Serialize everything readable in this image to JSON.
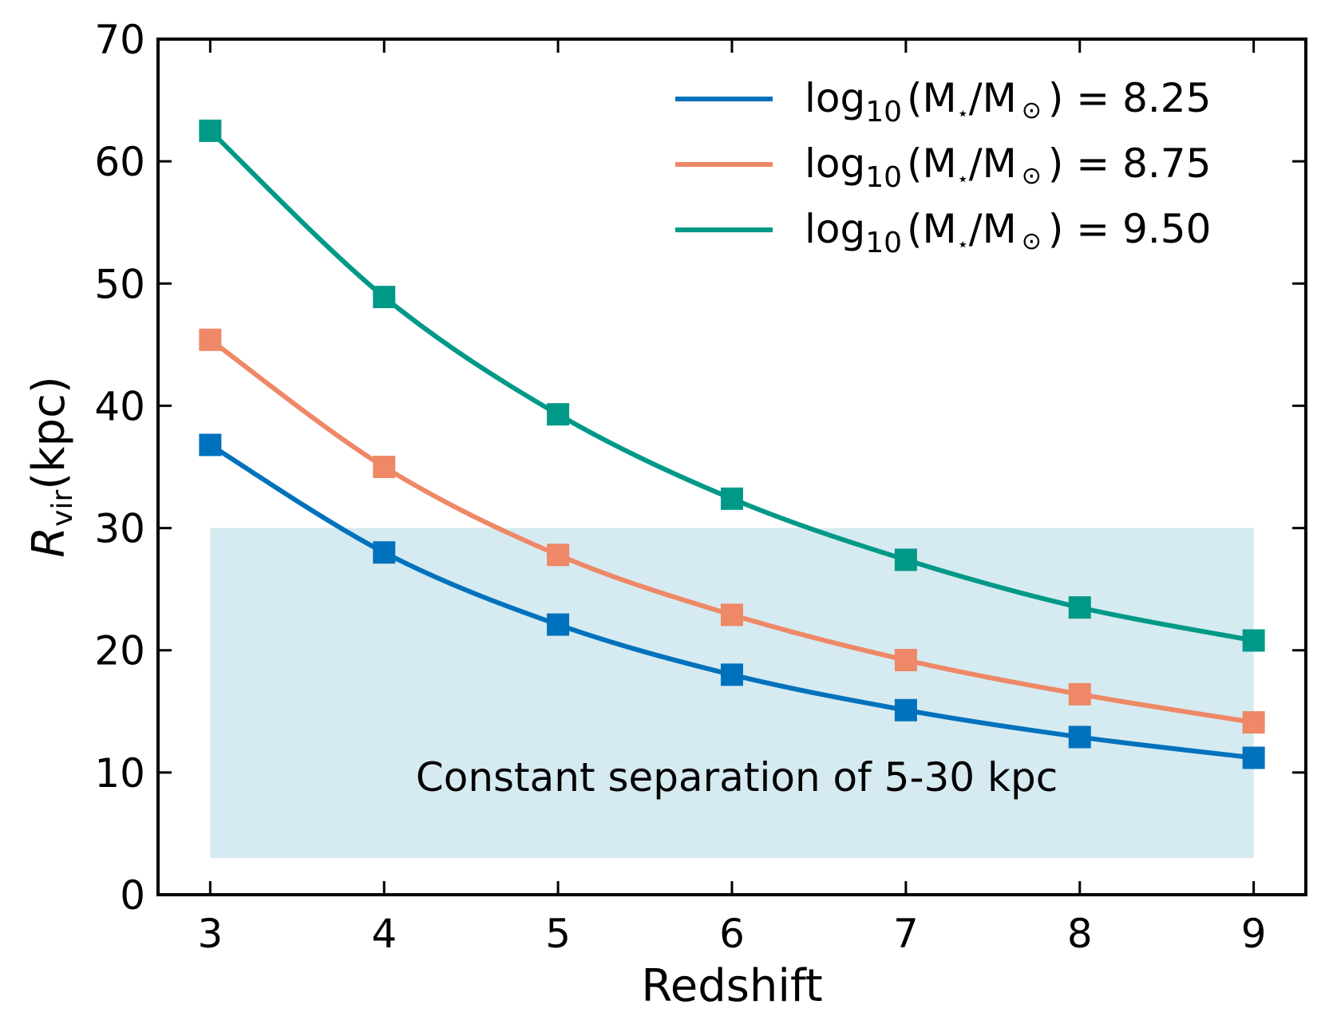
{
  "chart_data": {
    "type": "line",
    "title": "",
    "xlabel": "Redshift",
    "ylabel": {
      "main": "R",
      "sub": "vir",
      "unit": "(kpc)"
    },
    "xlim": [
      2.7,
      9.3
    ],
    "ylim": [
      0,
      70
    ],
    "xticks": [
      3,
      4,
      5,
      6,
      7,
      8,
      9
    ],
    "yticks": [
      0,
      10,
      20,
      30,
      40,
      50,
      60,
      70
    ],
    "grid": false,
    "legend_position": "top-right",
    "x": [
      3,
      4,
      5,
      6,
      7,
      8,
      9
    ],
    "series": [
      {
        "name": "8.25",
        "legend": {
          "prefix": "log",
          "base": "10",
          "expr": "(M",
          "star": "⋆",
          "slash": "/M",
          "sun": "⊙",
          "close": ")",
          "eq": " = 8.25"
        },
        "color": "#0072bd",
        "values": [
          36.8,
          28.0,
          22.1,
          18.0,
          15.1,
          12.9,
          11.2
        ]
      },
      {
        "name": "8.75",
        "legend": {
          "prefix": "log",
          "base": "10",
          "expr": "(M",
          "star": "⋆",
          "slash": "/M",
          "sun": "⊙",
          "close": ")",
          "eq": " = 8.75"
        },
        "color": "#ee8866",
        "values": [
          45.4,
          35.0,
          27.8,
          22.9,
          19.2,
          16.4,
          14.1
        ]
      },
      {
        "name": "9.50",
        "legend": {
          "prefix": "log",
          "base": "10",
          "expr": "(M",
          "star": "⋆",
          "slash": "/M",
          "sun": "⊙",
          "close": ")",
          "eq": " = 9.50"
        },
        "color": "#009988",
        "values": [
          62.5,
          48.9,
          39.3,
          32.4,
          27.4,
          23.5,
          20.8
        ]
      }
    ],
    "shaded_region": {
      "x_range": [
        3,
        9
      ],
      "y_range": [
        3,
        30
      ],
      "color": "#d6eaf1"
    },
    "annotation": "Constant separation of 5-30 kpc"
  }
}
